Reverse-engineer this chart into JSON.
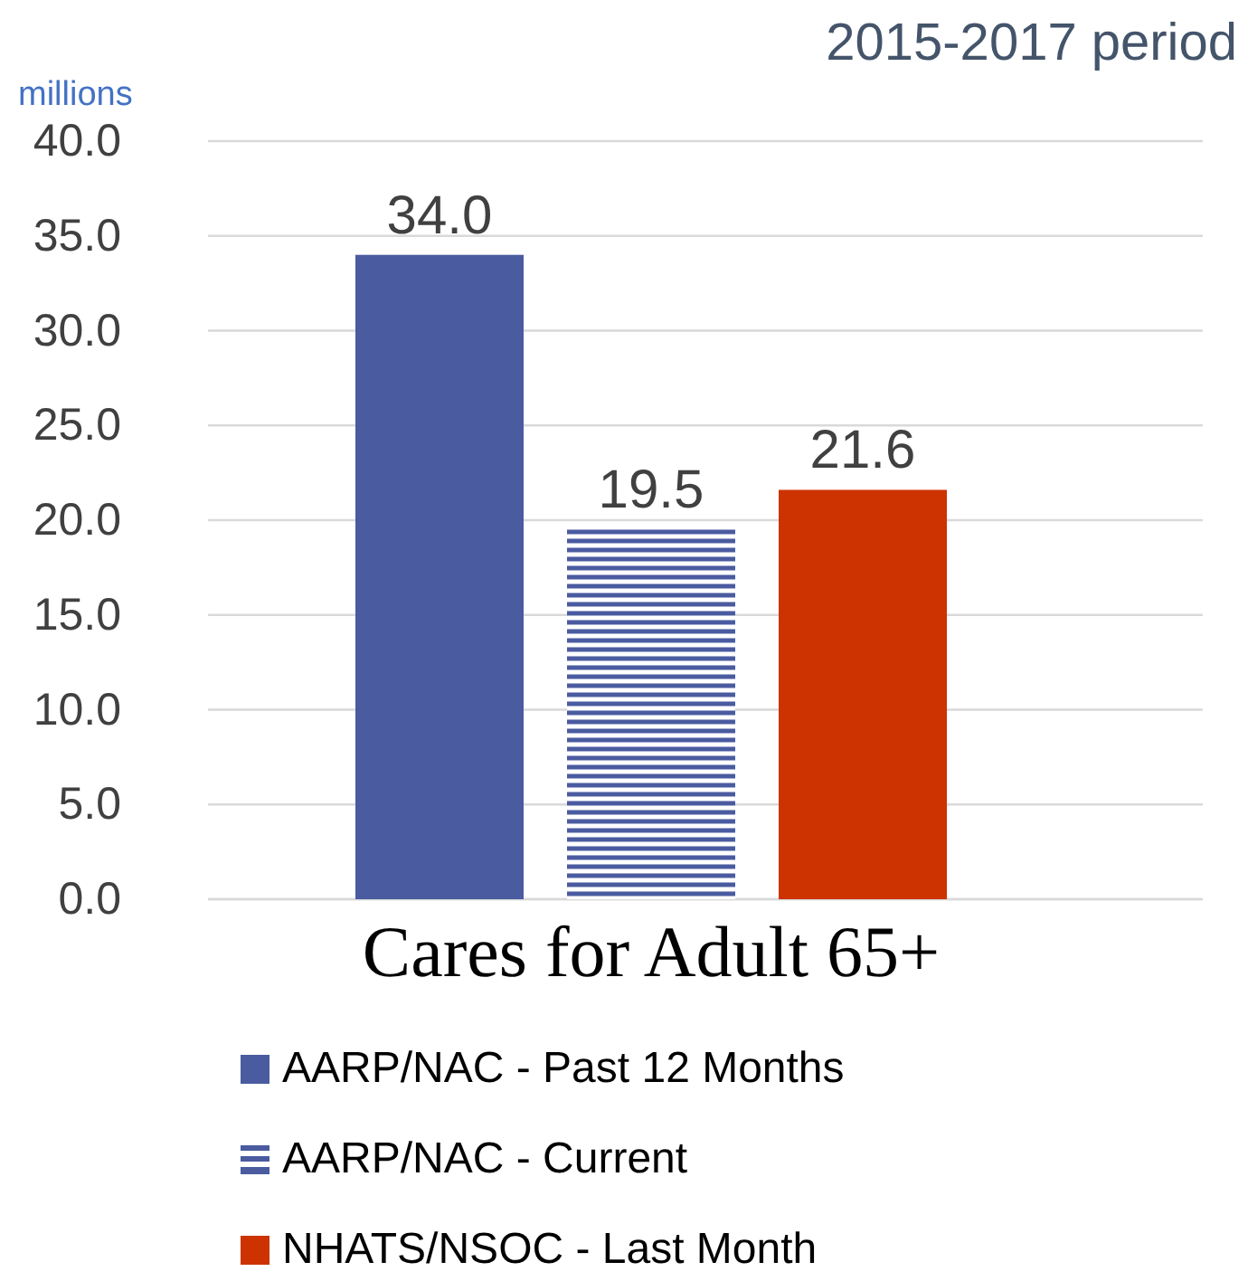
{
  "chart_data": {
    "type": "bar",
    "title": "2015-2017 period",
    "ylabel": "millions",
    "categories": [
      "Cares for Adult 65+"
    ],
    "series": [
      {
        "name": "AARP/NAC - Past 12 Months",
        "color": "#4a5ba0",
        "values": [
          34.0
        ],
        "value_labels": [
          "34.0"
        ]
      },
      {
        "name": "AARP/NAC - Current",
        "color": "#4a5ba0",
        "values": [
          19.5
        ],
        "value_labels": [
          "19.5"
        ]
      },
      {
        "name": "NHATS/NSOC - Last Month",
        "color": "#cc3300",
        "values": [
          21.6
        ],
        "value_labels": [
          "21.6"
        ]
      }
    ],
    "ylim": [
      0,
      40
    ],
    "yticks": [
      {
        "value": 0,
        "label": "0.0"
      },
      {
        "value": 5,
        "label": "5.0"
      },
      {
        "value": 10,
        "label": "10.0"
      },
      {
        "value": 15,
        "label": "15.0"
      },
      {
        "value": 20,
        "label": "20.0"
      },
      {
        "value": 25,
        "label": "25.0"
      },
      {
        "value": 30,
        "label": "30.0"
      },
      {
        "value": 35,
        "label": "35.0"
      },
      {
        "value": 40,
        "label": "40.0"
      }
    ],
    "grid": "y",
    "legend": "bottom"
  }
}
